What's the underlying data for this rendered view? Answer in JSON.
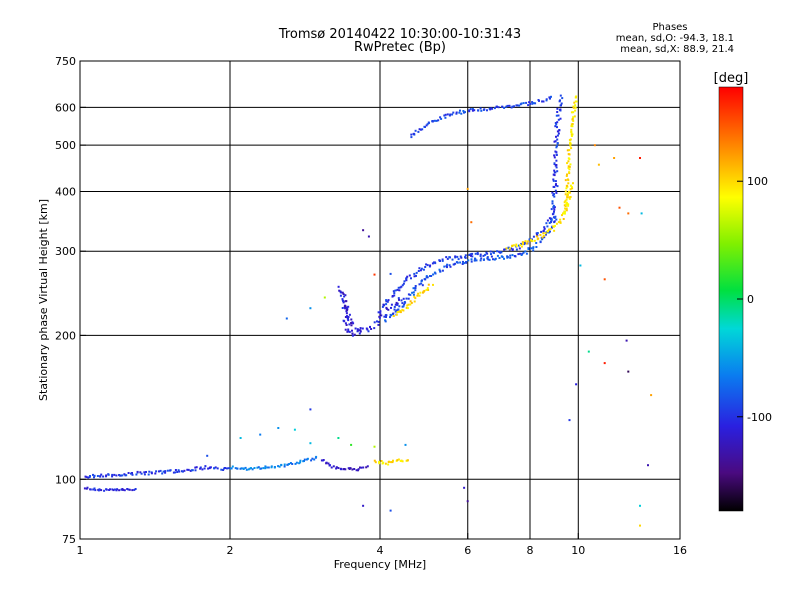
{
  "header": {
    "title_line1": "Tromsø 20140422 10:30:00-10:31:43",
    "title_line2": "RwPretec (Bp)"
  },
  "phases": {
    "heading": "Phases",
    "line_o": "mean, sd,O: -94.3, 18.1",
    "line_x": "mean, sd,X:  88.9, 21.4"
  },
  "colorbar": {
    "unit": "[deg]",
    "ticks": [
      "100",
      "0",
      "-100"
    ],
    "tick_values": [
      100,
      0,
      -100
    ],
    "range": [
      -180,
      180
    ]
  },
  "chart_data": {
    "type": "scatter",
    "xlabel": "Frequency [MHz]",
    "ylabel": "Stationary phase Virtual Height [km]",
    "x_scale": "log",
    "y_scale": "log",
    "xlim": [
      1,
      16
    ],
    "ylim": [
      75,
      750
    ],
    "x_ticks": [
      1,
      2,
      4,
      6,
      8,
      10,
      16
    ],
    "x_tick_labels": [
      "1",
      "2",
      "4",
      "6",
      "8",
      "10",
      "16"
    ],
    "y_ticks": [
      75,
      100,
      200,
      300,
      400,
      500,
      600,
      750
    ],
    "y_tick_labels": [
      "75",
      "100",
      "200",
      "300",
      "400",
      "500",
      "600",
      "750"
    ],
    "grid": true,
    "color_by": "phase_deg",
    "traces": [
      {
        "x": [
          1.02,
          1.1,
          1.2,
          1.3,
          1.4,
          1.5,
          1.6,
          1.7,
          1.8,
          1.9,
          2.0
        ],
        "y": [
          101,
          102,
          102,
          103,
          103,
          104,
          104,
          105,
          106,
          105,
          106
        ],
        "phase": -100,
        "spread": 1.5
      },
      {
        "x": [
          2.0,
          2.2,
          2.4,
          2.6,
          2.8,
          3.0
        ],
        "y": [
          106,
          105,
          106,
          107,
          109,
          111
        ],
        "phase": -70,
        "spread": 1.2
      },
      {
        "x": [
          1.02,
          1.1,
          1.2,
          1.3
        ],
        "y": [
          96,
          95,
          95,
          95
        ],
        "phase": -110,
        "spread": 1.2
      },
      {
        "x": [
          3.05,
          3.2,
          3.4,
          3.6,
          3.8
        ],
        "y": [
          110,
          106,
          105,
          105,
          106
        ],
        "phase": -125,
        "spread": 1.2
      },
      {
        "x": [
          3.9,
          4.1,
          4.3,
          4.6
        ],
        "y": [
          109,
          108,
          109,
          110
        ],
        "phase": 95,
        "spread": 1.5
      },
      {
        "x": [
          3.35,
          3.45,
          3.5,
          3.6,
          3.7,
          3.8,
          3.9,
          4.0,
          4.1,
          4.3,
          4.5
        ],
        "y": [
          250,
          205,
          203,
          202,
          203,
          206,
          210,
          217,
          222,
          232,
          240
        ],
        "phase": -110,
        "spread": 3.0
      },
      {
        "x": [
          3.35,
          3.4,
          3.45,
          3.5,
          3.6,
          3.7
        ],
        "y": [
          245,
          235,
          225,
          212,
          206,
          205
        ],
        "phase": -120,
        "spread": 2.5
      },
      {
        "x": [
          4.0,
          4.2,
          4.4,
          4.6,
          4.8,
          5.0,
          5.2,
          5.5,
          6.0,
          6.5,
          7.0,
          7.5,
          8.0,
          8.4,
          8.7,
          8.9
        ],
        "y": [
          225,
          240,
          255,
          265,
          274,
          280,
          285,
          290,
          293,
          296,
          300,
          305,
          315,
          330,
          345,
          360
        ],
        "phase": -100,
        "spread": 2.0
      },
      {
        "x": [
          4.1,
          4.3,
          4.5,
          4.7,
          5.0,
          5.3,
          5.7,
          6.2,
          6.7,
          7.2,
          7.8,
          8.3,
          8.7,
          9.0
        ],
        "y": [
          215,
          222,
          235,
          250,
          265,
          275,
          283,
          288,
          290,
          292,
          298,
          310,
          330,
          355
        ],
        "phase": -90,
        "spread": 2.0
      },
      {
        "x": [
          4.3,
          4.5,
          4.7,
          4.9,
          5.1
        ],
        "y": [
          220,
          228,
          240,
          248,
          255
        ],
        "phase": 100,
        "spread": 2.0
      },
      {
        "x": [
          7.2,
          7.6,
          8.0,
          8.4,
          8.8,
          9.2,
          9.5,
          9.7
        ],
        "y": [
          305,
          308,
          315,
          322,
          330,
          345,
          370,
          420
        ],
        "phase": 95,
        "spread": 1.8
      },
      {
        "x": [
          8.9,
          9.0,
          9.05,
          9.1,
          9.15,
          9.2
        ],
        "y": [
          350,
          420,
          500,
          560,
          600,
          640
        ],
        "phase": -100,
        "spread": 2.5
      },
      {
        "x": [
          9.4,
          9.5,
          9.6,
          9.7,
          9.8,
          9.9,
          10.0
        ],
        "y": [
          360,
          420,
          480,
          540,
          590,
          620,
          640
        ],
        "phase": 95,
        "spread": 1.8
      },
      {
        "x": [
          4.6,
          5.0,
          5.5,
          6.0,
          6.5,
          7.0,
          7.5,
          8.0,
          8.5,
          8.9
        ],
        "y": [
          520,
          555,
          580,
          590,
          595,
          600,
          605,
          612,
          620,
          630
        ],
        "phase": -95,
        "spread": 1.5
      }
    ],
    "points": [
      {
        "x": 2.6,
        "y": 217,
        "phase": -80
      },
      {
        "x": 2.9,
        "y": 228,
        "phase": -60
      },
      {
        "x": 3.1,
        "y": 240,
        "phase": 60
      },
      {
        "x": 3.7,
        "y": 332,
        "phase": -140
      },
      {
        "x": 3.8,
        "y": 322,
        "phase": -130
      },
      {
        "x": 3.9,
        "y": 268,
        "phase": 160
      },
      {
        "x": 4.2,
        "y": 269,
        "phase": -90
      },
      {
        "x": 6.0,
        "y": 405,
        "phase": 120
      },
      {
        "x": 6.1,
        "y": 345,
        "phase": 140
      },
      {
        "x": 10.8,
        "y": 500,
        "phase": 130
      },
      {
        "x": 11.0,
        "y": 455,
        "phase": 110
      },
      {
        "x": 11.8,
        "y": 470,
        "phase": 120
      },
      {
        "x": 13.3,
        "y": 470,
        "phase": 170
      },
      {
        "x": 12.1,
        "y": 370,
        "phase": 150
      },
      {
        "x": 12.6,
        "y": 360,
        "phase": 140
      },
      {
        "x": 13.4,
        "y": 360,
        "phase": -40
      },
      {
        "x": 10.1,
        "y": 280,
        "phase": -40
      },
      {
        "x": 11.3,
        "y": 262,
        "phase": 150
      },
      {
        "x": 10.5,
        "y": 185,
        "phase": -10
      },
      {
        "x": 11.3,
        "y": 175,
        "phase": 170
      },
      {
        "x": 12.5,
        "y": 195,
        "phase": -130
      },
      {
        "x": 12.6,
        "y": 168,
        "phase": -160
      },
      {
        "x": 9.9,
        "y": 158,
        "phase": -110
      },
      {
        "x": 9.6,
        "y": 133,
        "phase": -100
      },
      {
        "x": 14.0,
        "y": 150,
        "phase": 120
      },
      {
        "x": 13.8,
        "y": 107,
        "phase": -130
      },
      {
        "x": 13.3,
        "y": 88,
        "phase": -30
      },
      {
        "x": 13.3,
        "y": 80,
        "phase": 100
      },
      {
        "x": 5.9,
        "y": 96,
        "phase": -120
      },
      {
        "x": 6.0,
        "y": 90,
        "phase": -140
      },
      {
        "x": 3.7,
        "y": 88,
        "phase": -120
      },
      {
        "x": 4.2,
        "y": 86,
        "phase": -90
      },
      {
        "x": 2.1,
        "y": 122,
        "phase": -40
      },
      {
        "x": 2.3,
        "y": 124,
        "phase": -70
      },
      {
        "x": 2.5,
        "y": 128,
        "phase": -60
      },
      {
        "x": 2.7,
        "y": 127,
        "phase": -30
      },
      {
        "x": 2.9,
        "y": 119,
        "phase": -40
      },
      {
        "x": 3.3,
        "y": 122,
        "phase": -10
      },
      {
        "x": 3.5,
        "y": 118,
        "phase": 20
      },
      {
        "x": 3.9,
        "y": 117,
        "phase": 60
      },
      {
        "x": 4.5,
        "y": 118,
        "phase": -60
      },
      {
        "x": 1.8,
        "y": 112,
        "phase": -90
      },
      {
        "x": 2.9,
        "y": 140,
        "phase": -100
      }
    ]
  }
}
